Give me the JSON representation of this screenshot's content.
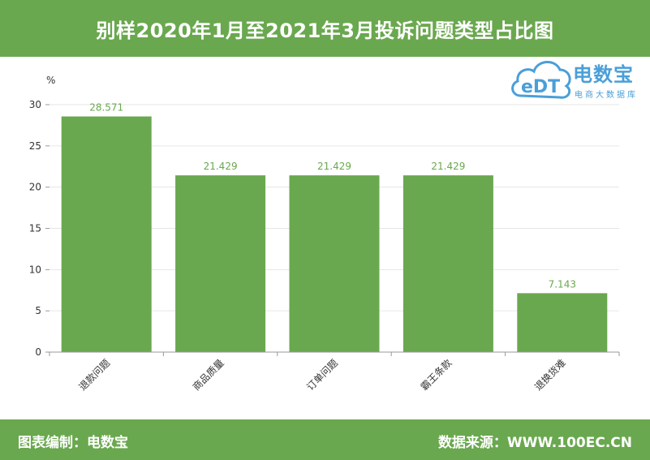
{
  "header": {
    "title": "别样2020年1月至2021年3月投诉问题类型占比图"
  },
  "footer": {
    "left": "图表编制：电数宝",
    "right": "数据来源：WWW.100EC.CN"
  },
  "logo": {
    "mark": "eDT",
    "brand": "电数宝",
    "tagline": "电商大数据库",
    "color": "#4a9fd8"
  },
  "colors": {
    "header_bg": "#6aa84f",
    "bar": "#6aa84f",
    "label": "#6aa84f"
  },
  "chart_data": {
    "type": "bar",
    "title": "",
    "xlabel": "",
    "ylabel": "%",
    "categories": [
      "退款问题",
      "商品质量",
      "订单问题",
      "霸王条款",
      "退换货难"
    ],
    "values": [
      28.571,
      21.429,
      21.429,
      21.429,
      7.143
    ],
    "value_labels": [
      "28.571",
      "21.429",
      "21.429",
      "21.429",
      "7.143"
    ],
    "yticks": [
      "0",
      "5",
      "10",
      "15",
      "20",
      "25",
      "30"
    ],
    "ylim": [
      0,
      30
    ],
    "grid": true,
    "legend": "none"
  }
}
